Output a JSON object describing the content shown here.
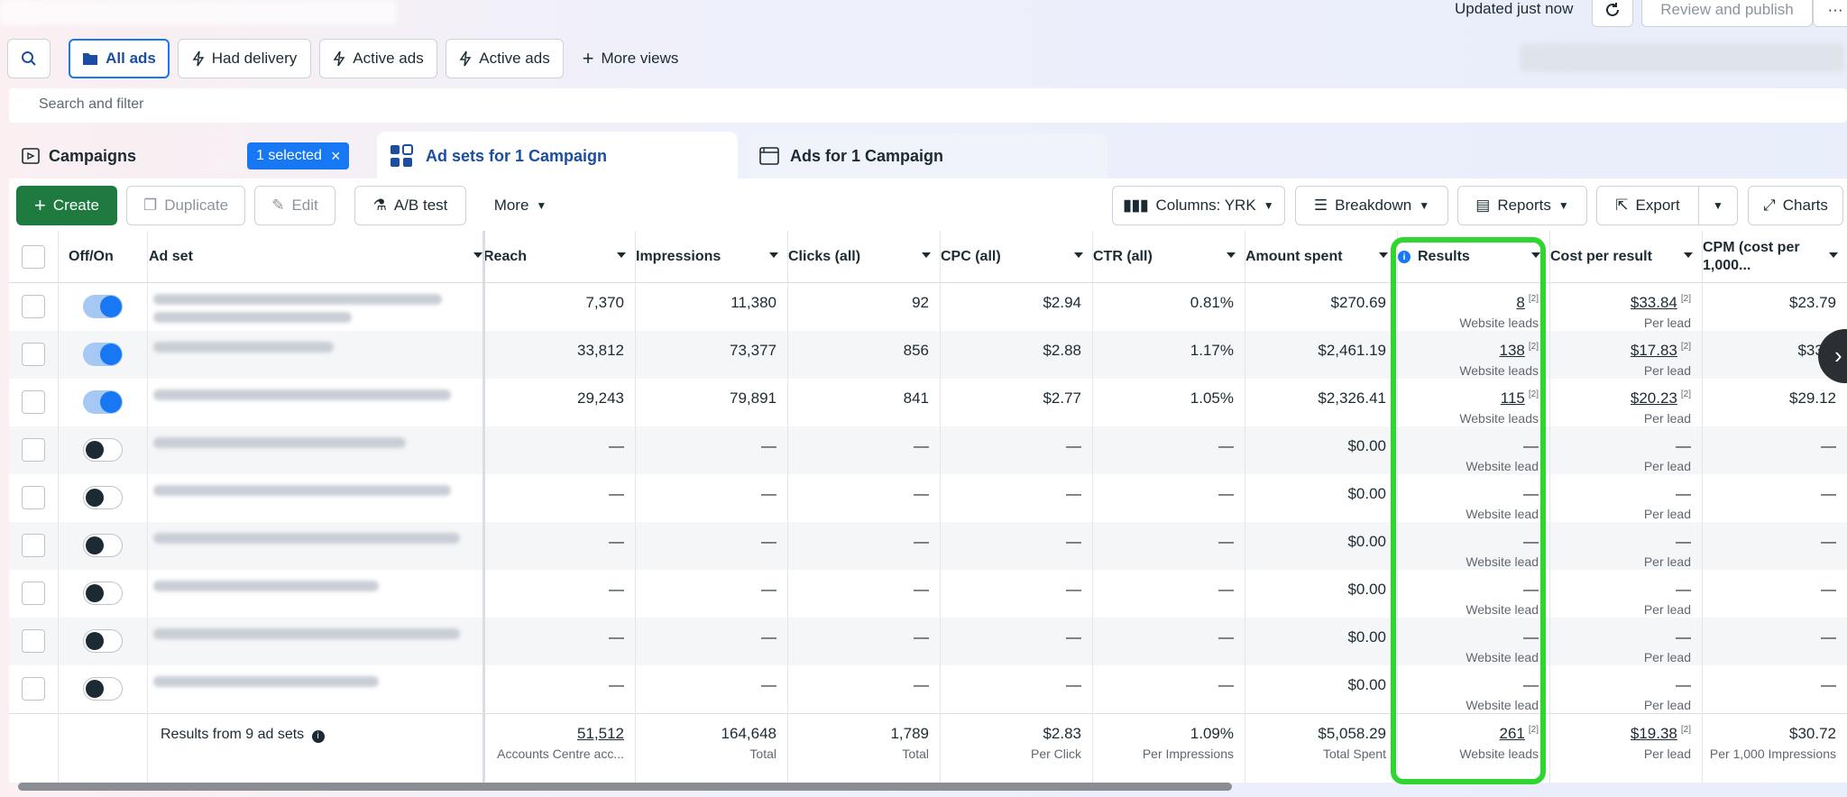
{
  "topbar": {
    "updated": "Updated just now",
    "review_publish": "Review and publish",
    "more": "···"
  },
  "views": {
    "all_ads": "All ads",
    "had_delivery": "Had delivery",
    "active_ads_1": "Active ads",
    "active_ads_2": "Active ads",
    "more_views": "More views"
  },
  "search": {
    "placeholder": "Search and filter"
  },
  "tabs": {
    "campaigns": "Campaigns",
    "selected": "1 selected",
    "adsets": "Ad sets for 1 Campaign",
    "ads": "Ads for 1 Campaign"
  },
  "toolbar": {
    "create": "Create",
    "duplicate": "Duplicate",
    "edit": "Edit",
    "ab_test": "A/B test",
    "more": "More",
    "columns": "Columns: YRK",
    "breakdown": "Breakdown",
    "reports": "Reports",
    "export": "Export",
    "charts": "Charts"
  },
  "table": {
    "headers": {
      "offon": "Off/On",
      "adset": "Ad set",
      "reach": "Reach",
      "impressions": "Impressions",
      "clicks": "Clicks (all)",
      "cpc": "CPC (all)",
      "ctr": "CTR (all)",
      "spent": "Amount spent",
      "results": "Results",
      "cpr": "Cost per result",
      "cpm_1": "CPM (cost per",
      "cpm_2": "1,000..."
    },
    "rows": [
      {
        "on": true,
        "reach": "7,370",
        "impressions": "11,380",
        "clicks": "92",
        "cpc": "$2.94",
        "ctr": "0.81%",
        "spent": "$270.69",
        "results": "8",
        "results_sub": "Website leads",
        "cpr": "$33.84",
        "cpr_sub": "Per lead",
        "cpm": "$23.79"
      },
      {
        "on": true,
        "reach": "33,812",
        "impressions": "73,377",
        "clicks": "856",
        "cpc": "$2.88",
        "ctr": "1.17%",
        "spent": "$2,461.19",
        "results": "138",
        "results_sub": "Website leads",
        "cpr": "$17.83",
        "cpr_sub": "Per lead",
        "cpm": "$33.5"
      },
      {
        "on": true,
        "reach": "29,243",
        "impressions": "79,891",
        "clicks": "841",
        "cpc": "$2.77",
        "ctr": "1.05%",
        "spent": "$2,326.41",
        "results": "115",
        "results_sub": "Website leads",
        "cpr": "$20.23",
        "cpr_sub": "Per lead",
        "cpm": "$29.12"
      },
      {
        "on": false,
        "reach": "—",
        "impressions": "—",
        "clicks": "—",
        "cpc": "—",
        "ctr": "—",
        "spent": "$0.00",
        "results": "—",
        "results_sub": "Website lead",
        "cpr": "—",
        "cpr_sub": "Per lead",
        "cpm": "—"
      },
      {
        "on": false,
        "reach": "—",
        "impressions": "—",
        "clicks": "—",
        "cpc": "—",
        "ctr": "—",
        "spent": "$0.00",
        "results": "—",
        "results_sub": "Website lead",
        "cpr": "—",
        "cpr_sub": "Per lead",
        "cpm": "—"
      },
      {
        "on": false,
        "reach": "—",
        "impressions": "—",
        "clicks": "—",
        "cpc": "—",
        "ctr": "—",
        "spent": "$0.00",
        "results": "—",
        "results_sub": "Website lead",
        "cpr": "—",
        "cpr_sub": "Per lead",
        "cpm": "—"
      },
      {
        "on": false,
        "reach": "—",
        "impressions": "—",
        "clicks": "—",
        "cpc": "—",
        "ctr": "—",
        "spent": "$0.00",
        "results": "—",
        "results_sub": "Website lead",
        "cpr": "—",
        "cpr_sub": "Per lead",
        "cpm": "—"
      },
      {
        "on": false,
        "reach": "—",
        "impressions": "—",
        "clicks": "—",
        "cpc": "—",
        "ctr": "—",
        "spent": "$0.00",
        "results": "—",
        "results_sub": "Website lead",
        "cpr": "—",
        "cpr_sub": "Per lead",
        "cpm": "—"
      },
      {
        "on": false,
        "reach": "—",
        "impressions": "—",
        "clicks": "—",
        "cpc": "—",
        "ctr": "—",
        "spent": "$0.00",
        "results": "—",
        "results_sub": "Website lead",
        "cpr": "—",
        "cpr_sub": "Per lead",
        "cpm": "—"
      }
    ],
    "totals": {
      "label": "Results from 9 ad sets",
      "reach": "51,512",
      "reach_sub": "Accounts Centre acc...",
      "impressions": "164,648",
      "impressions_sub": "Total",
      "clicks": "1,789",
      "clicks_sub": "Total",
      "cpc": "$2.83",
      "cpc_sub": "Per Click",
      "ctr": "1.09%",
      "ctr_sub": "Per Impressions",
      "spent": "$5,058.29",
      "spent_sub": "Total Spent",
      "results": "261",
      "results_sub": "Website leads",
      "cpr": "$19.38",
      "cpr_sub": "Per lead",
      "cpm": "$30.72",
      "cpm_sub": "Per 1,000 Impressions"
    },
    "footnote": "[2]"
  },
  "colors": {
    "accent": "#1877f2",
    "create_green": "#1e7a3e",
    "highlight": "#2fd62f"
  }
}
